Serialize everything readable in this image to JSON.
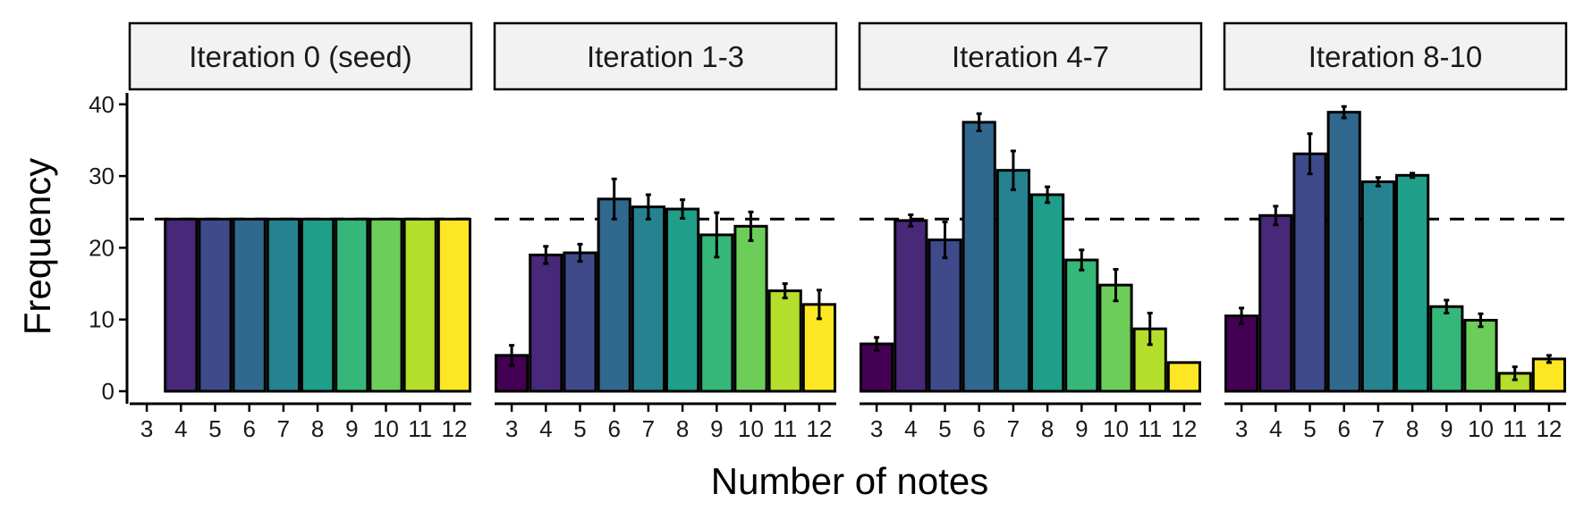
{
  "chart_data": {
    "type": "bar",
    "xlabel": "Number of notes",
    "ylabel": "Frequency",
    "ylim": [
      0,
      40
    ],
    "yticks": [
      0,
      10,
      20,
      30,
      40
    ],
    "reference_line": 24,
    "categories": [
      "3",
      "4",
      "5",
      "6",
      "7",
      "8",
      "9",
      "10",
      "11",
      "12"
    ],
    "fill_colors": [
      "#440154",
      "#482878",
      "#3E4A89",
      "#31688E",
      "#26828E",
      "#1F9E89",
      "#35B779",
      "#6DCD59",
      "#B4DE2C",
      "#FDE725"
    ],
    "panels": [
      {
        "title": "Iteration 0 (seed)",
        "values": [
          null,
          24,
          24,
          24,
          24,
          24,
          24,
          24,
          24,
          24
        ],
        "errors": [
          null,
          null,
          null,
          null,
          null,
          null,
          null,
          null,
          null,
          null
        ]
      },
      {
        "title": "Iteration 1-3",
        "values": [
          5,
          19,
          19.3,
          26.8,
          25.7,
          25.4,
          21.8,
          23,
          14,
          12.1
        ],
        "errors": [
          1.4,
          1.2,
          1.2,
          2.8,
          1.7,
          1.3,
          3.1,
          2.0,
          1.0,
          2.0
        ]
      },
      {
        "title": "Iteration 4-7",
        "values": [
          6.6,
          23.8,
          21.1,
          37.5,
          30.8,
          27.4,
          18.3,
          14.8,
          8.7,
          4
        ],
        "errors": [
          0.9,
          0.8,
          2.5,
          1.2,
          2.7,
          1.1,
          1.4,
          2.2,
          2.2,
          0
        ]
      },
      {
        "title": "Iteration 8-10",
        "values": [
          10.5,
          24.5,
          33.1,
          38.9,
          29.2,
          30.1,
          11.8,
          9.9,
          2.5,
          4.5
        ],
        "errors": [
          1.1,
          1.3,
          2.8,
          0.8,
          0.6,
          0.3,
          0.9,
          0.9,
          0.9,
          0.5
        ]
      }
    ]
  }
}
